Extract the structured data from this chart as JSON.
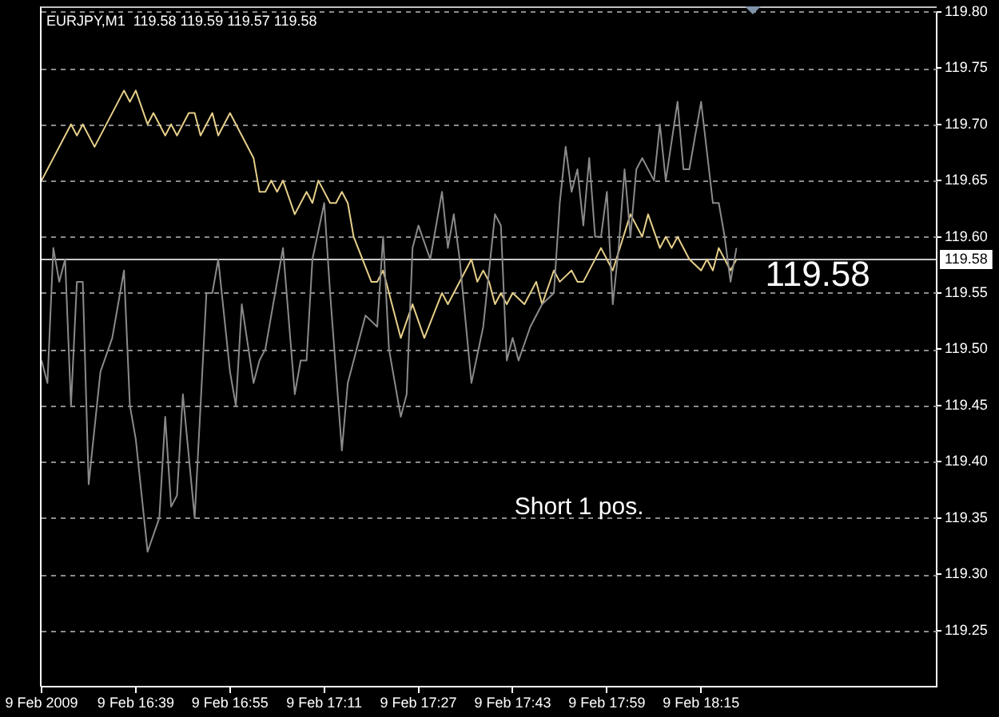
{
  "chart_data": {
    "type": "line",
    "title": "EURJPY,M1  119.58 119.59 119.57 119.58",
    "annotations": [
      "119.58",
      "Short 1 pos."
    ],
    "xlim": [
      "2009-02-09T16:23",
      "2009-02-09T18:55"
    ],
    "xticks": [
      {
        "value": "2009-02-09T16:23",
        "label": "9 Feb 2009"
      },
      {
        "value": "2009-02-09T16:39",
        "label": "9 Feb 16:39"
      },
      {
        "value": "2009-02-09T16:55",
        "label": "9 Feb 16:55"
      },
      {
        "value": "2009-02-09T17:11",
        "label": "9 Feb 17:11"
      },
      {
        "value": "2009-02-09T17:27",
        "label": "9 Feb 17:27"
      },
      {
        "value": "2009-02-09T17:43",
        "label": "9 Feb 17:43"
      },
      {
        "value": "2009-02-09T17:59",
        "label": "9 Feb 17:59"
      },
      {
        "value": "2009-02-09T18:15",
        "label": "9 Feb 18:15"
      }
    ],
    "ylim": [
      119.2,
      119.8
    ],
    "yticks": [
      119.25,
      {
        "value": 119.3,
        "label": "119.30"
      },
      119.35,
      {
        "value": 119.4,
        "label": "119.40"
      },
      119.45,
      {
        "value": 119.5,
        "label": "119.50"
      },
      119.55,
      {
        "value": 119.6,
        "label": "119.60"
      },
      119.65,
      {
        "value": 119.7,
        "label": "119.70"
      },
      119.75,
      {
        "value": 119.8,
        "label": "119.80"
      }
    ],
    "grid": "y",
    "marker": "none",
    "ref_lines": [
      {
        "axis": "y",
        "value": 119.58,
        "label": "119.58",
        "color": "#c8c8c8"
      }
    ],
    "series": [
      {
        "color": "#8a8a8a",
        "x": [
          "2009-02-09T16:23",
          "2009-02-09T16:24",
          "2009-02-09T16:25",
          "2009-02-09T16:26",
          "2009-02-09T16:27",
          "2009-02-09T16:28",
          "2009-02-09T16:29",
          "2009-02-09T16:30",
          "2009-02-09T16:31",
          "2009-02-09T16:33",
          "2009-02-09T16:35",
          "2009-02-09T16:37",
          "2009-02-09T16:38",
          "2009-02-09T16:39",
          "2009-02-09T16:41",
          "2009-02-09T16:43",
          "2009-02-09T16:44",
          "2009-02-09T16:45",
          "2009-02-09T16:46",
          "2009-02-09T16:47",
          "2009-02-09T16:49",
          "2009-02-09T16:51",
          "2009-02-09T16:52",
          "2009-02-09T16:53",
          "2009-02-09T16:55",
          "2009-02-09T16:56",
          "2009-02-09T16:57",
          "2009-02-09T16:59",
          "2009-02-09T17:00",
          "2009-02-09T17:01",
          "2009-02-09T17:04",
          "2009-02-09T17:06",
          "2009-02-09T17:07",
          "2009-02-09T17:08",
          "2009-02-09T17:09",
          "2009-02-09T17:11",
          "2009-02-09T17:12",
          "2009-02-09T17:14",
          "2009-02-09T17:15",
          "2009-02-09T17:18",
          "2009-02-09T17:20",
          "2009-02-09T17:21",
          "2009-02-09T17:22",
          "2009-02-09T17:24",
          "2009-02-09T17:25",
          "2009-02-09T17:26",
          "2009-02-09T17:27",
          "2009-02-09T17:29",
          "2009-02-09T17:31",
          "2009-02-09T17:32",
          "2009-02-09T17:33",
          "2009-02-09T17:34",
          "2009-02-09T17:36",
          "2009-02-09T17:38",
          "2009-02-09T17:40",
          "2009-02-09T17:41",
          "2009-02-09T17:42",
          "2009-02-09T17:43",
          "2009-02-09T17:44",
          "2009-02-09T17:46",
          "2009-02-09T17:48",
          "2009-02-09T17:50",
          "2009-02-09T17:51",
          "2009-02-09T17:52",
          "2009-02-09T17:53",
          "2009-02-09T17:54",
          "2009-02-09T17:55",
          "2009-02-09T17:56",
          "2009-02-09T17:57",
          "2009-02-09T17:58",
          "2009-02-09T17:59",
          "2009-02-09T18:00",
          "2009-02-09T18:01",
          "2009-02-09T18:02",
          "2009-02-09T18:03",
          "2009-02-09T18:04",
          "2009-02-09T18:05",
          "2009-02-09T18:07",
          "2009-02-09T18:08",
          "2009-02-09T18:09",
          "2009-02-09T18:11",
          "2009-02-09T18:12",
          "2009-02-09T18:13",
          "2009-02-09T18:15",
          "2009-02-09T18:17",
          "2009-02-09T18:18",
          "2009-02-09T18:19",
          "2009-02-09T18:20",
          "2009-02-09T18:21"
        ],
        "values": [
          119.49,
          119.47,
          119.59,
          119.56,
          119.58,
          119.45,
          119.56,
          119.56,
          119.38,
          119.48,
          119.51,
          119.57,
          119.45,
          119.42,
          119.32,
          119.35,
          119.44,
          119.36,
          119.37,
          119.46,
          119.35,
          119.55,
          119.55,
          119.58,
          119.48,
          119.45,
          119.54,
          119.47,
          119.49,
          119.5,
          119.59,
          119.46,
          119.49,
          119.49,
          119.58,
          119.63,
          119.55,
          119.41,
          119.47,
          119.53,
          119.52,
          119.6,
          119.5,
          119.44,
          119.46,
          119.59,
          119.61,
          119.58,
          119.64,
          119.59,
          119.62,
          119.58,
          119.47,
          119.52,
          119.62,
          119.61,
          119.49,
          119.51,
          119.49,
          119.52,
          119.54,
          119.55,
          119.63,
          119.68,
          119.64,
          119.66,
          119.61,
          119.67,
          119.6,
          119.6,
          119.64,
          119.54,
          119.59,
          119.66,
          119.6,
          119.66,
          119.67,
          119.65,
          119.7,
          119.65,
          119.72,
          119.66,
          119.66,
          119.72,
          119.63,
          119.63,
          119.6,
          119.56,
          119.59
        ]
      },
      {
        "color": "#e6cf8a",
        "x": [
          "2009-02-09T16:23",
          "2009-02-09T16:28",
          "2009-02-09T16:29",
          "2009-02-09T16:30",
          "2009-02-09T16:32",
          "2009-02-09T16:37",
          "2009-02-09T16:38",
          "2009-02-09T16:39",
          "2009-02-09T16:41",
          "2009-02-09T16:42",
          "2009-02-09T16:44",
          "2009-02-09T16:45",
          "2009-02-09T16:46",
          "2009-02-09T16:48",
          "2009-02-09T16:49",
          "2009-02-09T16:50",
          "2009-02-09T16:52",
          "2009-02-09T16:53",
          "2009-02-09T16:55",
          "2009-02-09T16:59",
          "2009-02-09T17:00",
          "2009-02-09T17:01",
          "2009-02-09T17:02",
          "2009-02-09T17:03",
          "2009-02-09T17:04",
          "2009-02-09T17:06",
          "2009-02-09T17:08",
          "2009-02-09T17:09",
          "2009-02-09T17:10",
          "2009-02-09T17:12",
          "2009-02-09T17:13",
          "2009-02-09T17:14",
          "2009-02-09T17:15",
          "2009-02-09T17:16",
          "2009-02-09T17:19",
          "2009-02-09T17:20",
          "2009-02-09T17:21",
          "2009-02-09T17:24",
          "2009-02-09T17:26",
          "2009-02-09T17:28",
          "2009-02-09T17:31",
          "2009-02-09T17:32",
          "2009-02-09T17:36",
          "2009-02-09T17:37",
          "2009-02-09T17:38",
          "2009-02-09T17:39",
          "2009-02-09T17:40",
          "2009-02-09T17:41",
          "2009-02-09T17:42",
          "2009-02-09T17:43",
          "2009-02-09T17:45",
          "2009-02-09T17:47",
          "2009-02-09T17:48",
          "2009-02-09T17:50",
          "2009-02-09T17:51",
          "2009-02-09T17:53",
          "2009-02-09T17:54",
          "2009-02-09T17:55",
          "2009-02-09T17:58",
          "2009-02-09T18:00",
          "2009-02-09T18:03",
          "2009-02-09T18:05",
          "2009-02-09T18:06",
          "2009-02-09T18:08",
          "2009-02-09T18:09",
          "2009-02-09T18:10",
          "2009-02-09T18:11",
          "2009-02-09T18:13",
          "2009-02-09T18:15",
          "2009-02-09T18:16",
          "2009-02-09T18:17",
          "2009-02-09T18:18",
          "2009-02-09T18:20",
          "2009-02-09T18:21"
        ],
        "values": [
          119.65,
          119.7,
          119.69,
          119.7,
          119.68,
          119.73,
          119.72,
          119.73,
          119.7,
          119.71,
          119.69,
          119.7,
          119.69,
          119.71,
          119.71,
          119.69,
          119.71,
          119.69,
          119.71,
          119.67,
          119.64,
          119.64,
          119.65,
          119.64,
          119.65,
          119.62,
          119.64,
          119.63,
          119.65,
          119.63,
          119.63,
          119.64,
          119.63,
          119.6,
          119.56,
          119.56,
          119.57,
          119.51,
          119.54,
          119.51,
          119.55,
          119.54,
          119.58,
          119.56,
          119.57,
          119.56,
          119.54,
          119.55,
          119.54,
          119.55,
          119.54,
          119.56,
          119.54,
          119.57,
          119.56,
          119.57,
          119.56,
          119.56,
          119.59,
          119.57,
          119.62,
          119.6,
          119.62,
          119.59,
          119.6,
          119.59,
          119.6,
          119.58,
          119.57,
          119.58,
          119.57,
          119.59,
          119.57,
          119.58
        ]
      }
    ]
  }
}
